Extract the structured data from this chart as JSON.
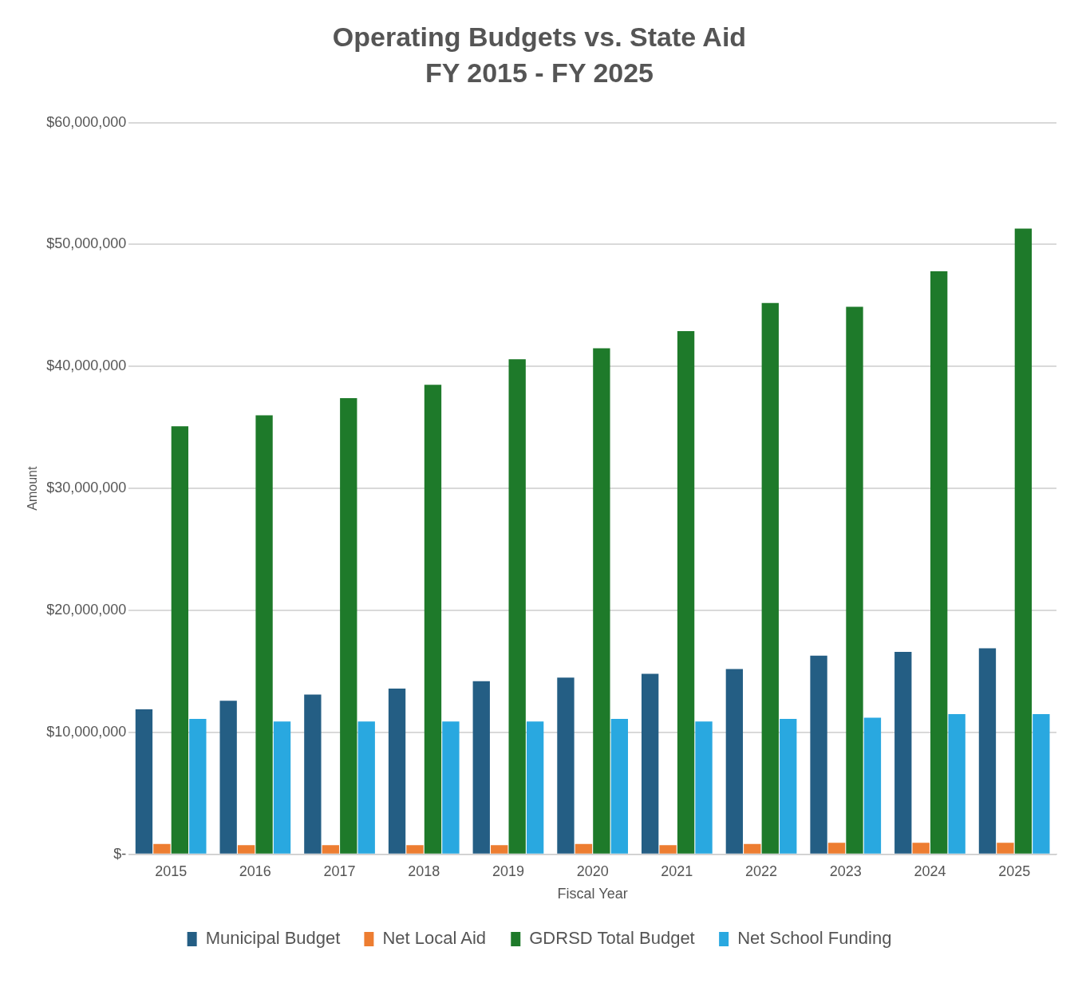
{
  "chart_data": {
    "type": "bar",
    "title": "Operating Budgets vs. State Aid",
    "subtitle": "FY 2015 - FY 2025",
    "xlabel": "Fiscal Year",
    "ylabel": "Amount",
    "categories": [
      "2015",
      "2016",
      "2017",
      "2018",
      "2019",
      "2020",
      "2021",
      "2022",
      "2023",
      "2024",
      "2025"
    ],
    "series": [
      {
        "name": "Municipal Budget",
        "color": "#245e84",
        "values": [
          11900000,
          12600000,
          13100000,
          13600000,
          14200000,
          14500000,
          14800000,
          15200000,
          16300000,
          16600000,
          16900000
        ]
      },
      {
        "name": "Net Local Aid",
        "color": "#ed7d31",
        "values": [
          850000,
          750000,
          750000,
          750000,
          750000,
          850000,
          750000,
          850000,
          950000,
          950000,
          950000
        ]
      },
      {
        "name": "GDRSD Total Budget",
        "color": "#1e7a2a",
        "values": [
          35100000,
          36000000,
          37400000,
          38500000,
          40600000,
          41500000,
          42900000,
          45200000,
          44900000,
          47800000,
          51300000
        ]
      },
      {
        "name": "Net School Funding",
        "color": "#29a8e0",
        "values": [
          11100000,
          10900000,
          10900000,
          10900000,
          10900000,
          11100000,
          10900000,
          11100000,
          11200000,
          11500000,
          11500000
        ]
      }
    ],
    "ylim": [
      0,
      60000000
    ],
    "yticks": [
      {
        "value": 0,
        "label": "$-"
      },
      {
        "value": 10000000,
        "label": "$10,000,000"
      },
      {
        "value": 20000000,
        "label": "$20,000,000"
      },
      {
        "value": 30000000,
        "label": "$30,000,000"
      },
      {
        "value": 40000000,
        "label": "$40,000,000"
      },
      {
        "value": 50000000,
        "label": "$50,000,000"
      },
      {
        "value": 60000000,
        "label": "$60,000,000"
      }
    ],
    "grid": "y",
    "legend": "bottom"
  }
}
